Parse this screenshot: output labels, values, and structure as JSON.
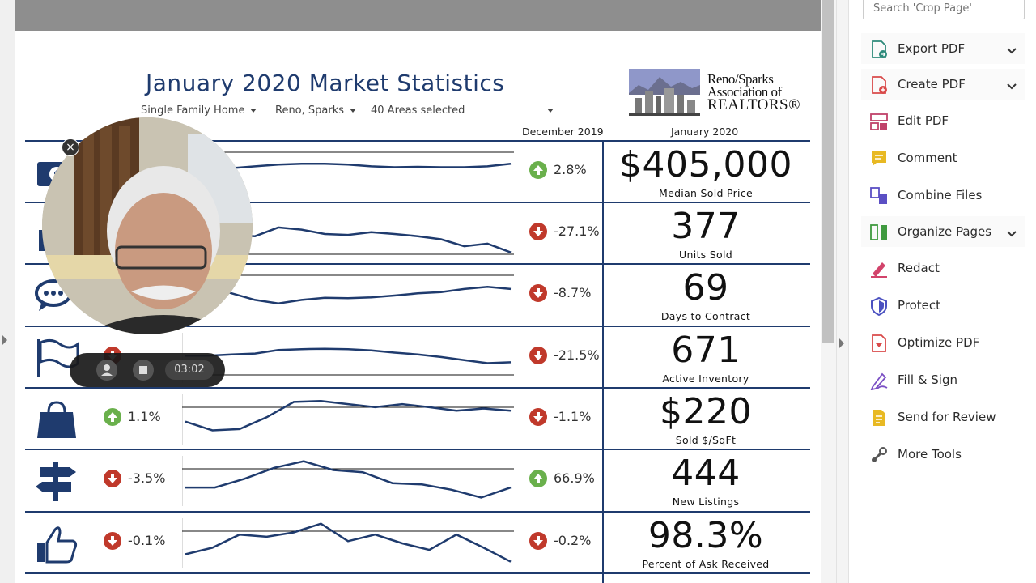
{
  "report": {
    "title": "January 2020 Market Statistics",
    "filters": [
      "Single Family Home",
      "Reno, Sparks",
      "40 Areas selected"
    ],
    "col_prev": "December 2019",
    "col_curr": "January 2020",
    "logo": {
      "line1": "Reno/Sparks",
      "line2": "Association of",
      "line3": "REALTORS®"
    },
    "rows": [
      {
        "icon": "money-icon",
        "left_dir": "",
        "left_pct": "",
        "spark": [
          0.55,
          0.45,
          0.4,
          0.36,
          0.32,
          0.3,
          0.3,
          0.32,
          0.36,
          0.38,
          0.37,
          0.38,
          0.38,
          0.36,
          0.3
        ],
        "dec_dir": "up",
        "dec_pct": "2.8%",
        "value": "$405,000",
        "label": "Median Sold Price"
      },
      {
        "icon": "house-sold-icon",
        "left_dir": "",
        "left_pct": "",
        "spark": [
          0.3,
          0.45,
          0.52,
          0.55,
          0.35,
          0.4,
          0.5,
          0.52,
          0.46,
          0.5,
          0.55,
          0.62,
          0.78,
          0.72,
          0.92
        ],
        "dec_dir": "down",
        "dec_pct": "-27.1%",
        "value": "377",
        "label": "Units Sold"
      },
      {
        "icon": "chat-icon",
        "left_dir": "",
        "left_pct": "",
        "spark": [
          0.2,
          0.3,
          0.45,
          0.6,
          0.68,
          0.6,
          0.55,
          0.56,
          0.54,
          0.5,
          0.45,
          0.42,
          0.35,
          0.3,
          0.35
        ],
        "dec_dir": "down",
        "dec_pct": "-8.7%",
        "value": "69",
        "label": "Days to Contract"
      },
      {
        "icon": "flag-icon",
        "left_dir": "down",
        "left_pct": "",
        "spark": [
          0.45,
          0.45,
          0.42,
          0.4,
          0.32,
          0.3,
          0.29,
          0.3,
          0.33,
          0.38,
          0.42,
          0.48,
          0.55,
          0.62,
          0.6
        ],
        "dec_dir": "down",
        "dec_pct": "-21.5%",
        "value": "671",
        "label": "Active Inventory"
      },
      {
        "icon": "shopping-bag-icon",
        "left_dir": "up",
        "left_pct": "1.1%",
        "spark": [
          0.55,
          0.75,
          0.72,
          0.45,
          0.1,
          0.08,
          0.15,
          0.22,
          0.15,
          0.22,
          0.3,
          0.25,
          0.3
        ],
        "dec_dir": "down",
        "dec_pct": "-1.1%",
        "value": "$220",
        "label": "Sold $/SqFt"
      },
      {
        "icon": "signpost-icon",
        "left_dir": "down",
        "left_pct": "-3.5%",
        "spark": [
          0.65,
          0.65,
          0.45,
          0.2,
          0.05,
          0.25,
          0.3,
          0.55,
          0.58,
          0.7,
          0.88,
          0.65
        ],
        "dec_dir": "up",
        "dec_pct": "66.9%",
        "value": "444",
        "label": "New Listings"
      },
      {
        "icon": "thumbs-up-icon",
        "left_dir": "down",
        "left_pct": "-0.1%",
        "spark": [
          0.75,
          0.6,
          0.3,
          0.35,
          0.25,
          0.05,
          0.45,
          0.3,
          0.5,
          0.65,
          0.3,
          0.6,
          0.92
        ],
        "dec_dir": "down",
        "dec_pct": "-0.2%",
        "value": "98.3%",
        "label": "Percent of Ask Received"
      }
    ]
  },
  "recorder": {
    "time": "03:02"
  },
  "tools_pane": {
    "search_placeholder": "Search 'Crop Page'",
    "items": [
      {
        "label": "Export PDF",
        "icon": "export-pdf-icon",
        "expandable": true,
        "color": "#2d8a7a"
      },
      {
        "label": "Create PDF",
        "icon": "create-pdf-icon",
        "expandable": true,
        "color": "#d94a4a"
      },
      {
        "label": "Edit PDF",
        "icon": "edit-pdf-icon",
        "expandable": false,
        "color": "#c0426a"
      },
      {
        "label": "Comment",
        "icon": "comment-icon",
        "expandable": false,
        "color": "#e8b923"
      },
      {
        "label": "Combine Files",
        "icon": "combine-files-icon",
        "expandable": false,
        "color": "#5b4fc4"
      },
      {
        "label": "Organize Pages",
        "icon": "organize-pages-icon",
        "expandable": true,
        "color": "#3f9a3f"
      },
      {
        "label": "Redact",
        "icon": "redact-icon",
        "expandable": false,
        "color": "#d2436b"
      },
      {
        "label": "Protect",
        "icon": "protect-icon",
        "expandable": false,
        "color": "#4a50c0"
      },
      {
        "label": "Optimize PDF",
        "icon": "optimize-pdf-icon",
        "expandable": false,
        "color": "#d94a4a"
      },
      {
        "label": "Fill & Sign",
        "icon": "fill-sign-icon",
        "expandable": false,
        "color": "#7a4fc4"
      },
      {
        "label": "Send for Review",
        "icon": "send-review-icon",
        "expandable": false,
        "color": "#e8b923"
      },
      {
        "label": "More Tools",
        "icon": "more-tools-icon",
        "expandable": false,
        "color": "#555555"
      }
    ]
  },
  "colors": {
    "navy": "#1f3b6e",
    "up": "#6ab04c",
    "down": "#c0392b"
  }
}
